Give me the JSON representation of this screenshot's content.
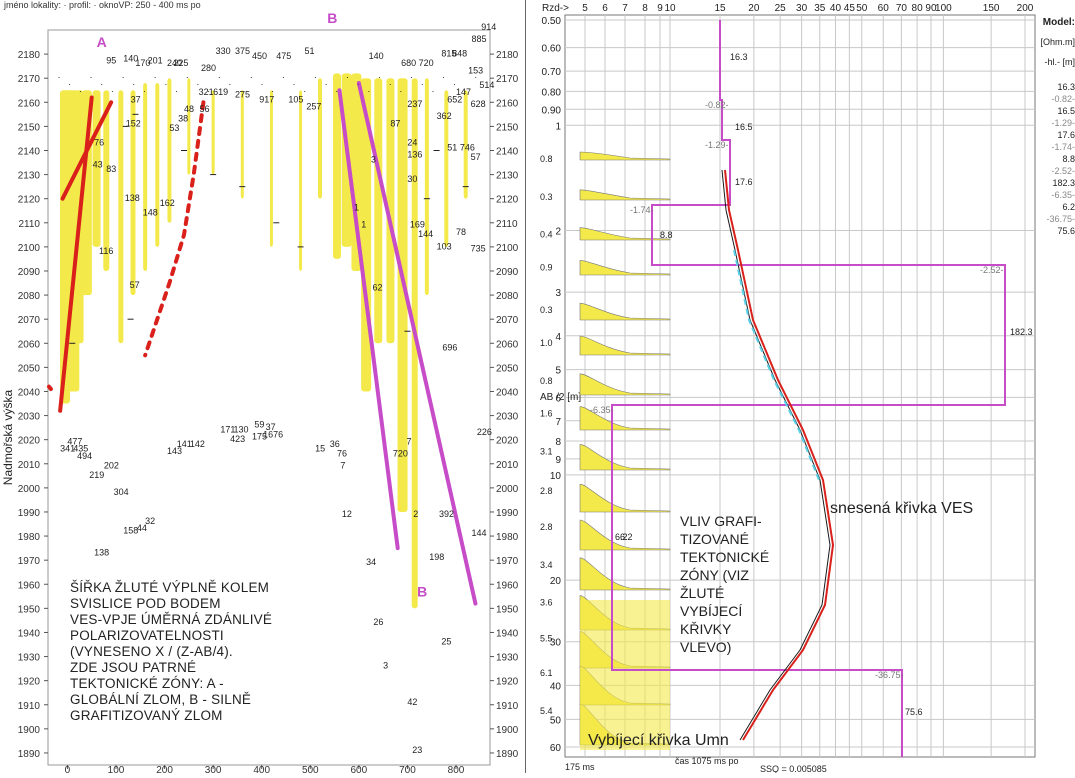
{
  "left_header": "jméno lokality:  · profil:  · oknoVP: 250 - 400 ms po",
  "left_note": "ŠÍŘKA ŽLUTÉ VÝPLNĚ KOLEM\nSVISLICE POD BODEM\nVES-VPJE ÚMĚRNÁ ZDÁNLIVÉ\nPOLARIZOVATELNOSTI\n(VYNESENO   X   / (Z-AB/4).\nZDE JSOU PATRNÉ\nTEKTONICKÉ ZÓNY: A -\nGLOBÁLNÍ ZLOM, B - SILNĚ\nGRAFITIZOVANÝ ZLOM",
  "right_note": "VLIV GRAFI-\nTIZOVANÉ\nTEKTONICKÉ\nZÓNY (VIZ\nŽLUTÉ\nVYBÍJECÍ\nKŘIVKY\nVLEVO)",
  "right_curve_label": "snesená křivka VES",
  "discharge_label": "Vybíjecí křivka Umn",
  "colors": {
    "yellow": "#f4e94a",
    "red": "#d9201a",
    "magenta": "#c64cc8",
    "black": "#1a1a1a",
    "cyan": "#5ad0e8",
    "grid": "#c8c8c8"
  },
  "chart_data": [
    {
      "type": "scatter",
      "ylabel": "Nadmořská výška",
      "xlim": [
        -40,
        870
      ],
      "ylim": [
        1885,
        2190
      ],
      "x_ticks": [
        0,
        100,
        200,
        300,
        400,
        500,
        600,
        700,
        800
      ],
      "y_ticks": [
        1890,
        1900,
        1910,
        1920,
        1930,
        1940,
        1950,
        1960,
        1970,
        1980,
        1990,
        2000,
        2010,
        2020,
        2030,
        2040,
        2050,
        2060,
        2070,
        2080,
        2090,
        2100,
        2110,
        2120,
        2130,
        2140,
        2150,
        2160,
        2170,
        2180
      ],
      "annotations": [
        {
          "text": "A",
          "x": 60,
          "y": 2183
        },
        {
          "text": "B",
          "x": 535,
          "y": 2193
        },
        {
          "text": "B",
          "x": 720,
          "y": 1955
        }
      ],
      "fault_lines": [
        {
          "name": "A",
          "color": "red",
          "points": [
            [
              -15,
              2032
            ],
            [
              50,
              2162
            ]
          ]
        },
        {
          "name": "A",
          "color": "red",
          "points": [
            [
              -10,
              2120
            ],
            [
              90,
              2160
            ]
          ]
        },
        {
          "name": "B",
          "color": "magenta",
          "points": [
            [
              560,
              2165
            ],
            [
              680,
              1975
            ]
          ]
        },
        {
          "name": "B",
          "color": "magenta",
          "points": [
            [
              600,
              2168
            ],
            [
              840,
              1952
            ]
          ]
        }
      ],
      "red_dashed_curve": [
        [
          280,
          2160
        ],
        [
          260,
          2130
        ],
        [
          240,
          2105
        ],
        [
          210,
          2085
        ],
        [
          185,
          2070
        ],
        [
          160,
          2055
        ]
      ],
      "yellow_columns": [
        {
          "x": -5,
          "top": 2165,
          "bottom": 2035,
          "w": 10
        },
        {
          "x": 8,
          "top": 2165,
          "bottom": 2040,
          "w": 16
        },
        {
          "x": 25,
          "top": 2165,
          "bottom": 2060,
          "w": 8
        },
        {
          "x": 40,
          "top": 2165,
          "bottom": 2080,
          "w": 10
        },
        {
          "x": 60,
          "top": 2165,
          "bottom": 2100,
          "w": 8
        },
        {
          "x": 80,
          "top": 2165,
          "bottom": 2090,
          "w": 6
        },
        {
          "x": 110,
          "top": 2165,
          "bottom": 2060,
          "w": 5
        },
        {
          "x": 135,
          "top": 2165,
          "bottom": 2080,
          "w": 5
        },
        {
          "x": 160,
          "top": 2168,
          "bottom": 2090,
          "w": 4
        },
        {
          "x": 185,
          "top": 2168,
          "bottom": 2100,
          "w": 4
        },
        {
          "x": 210,
          "top": 2170,
          "bottom": 2110,
          "w": 4
        },
        {
          "x": 250,
          "top": 2170,
          "bottom": 2130,
          "w": 3
        },
        {
          "x": 300,
          "top": 2165,
          "bottom": 2130,
          "w": 3
        },
        {
          "x": 360,
          "top": 2165,
          "bottom": 2120,
          "w": 3
        },
        {
          "x": 420,
          "top": 2165,
          "bottom": 2100,
          "w": 3
        },
        {
          "x": 480,
          "top": 2165,
          "bottom": 2090,
          "w": 3
        },
        {
          "x": 520,
          "top": 2170,
          "bottom": 2120,
          "w": 4
        },
        {
          "x": 555,
          "top": 2172,
          "bottom": 2095,
          "w": 8
        },
        {
          "x": 575,
          "top": 2172,
          "bottom": 2100,
          "w": 10
        },
        {
          "x": 595,
          "top": 2172,
          "bottom": 2090,
          "w": 10
        },
        {
          "x": 615,
          "top": 2170,
          "bottom": 2040,
          "w": 10
        },
        {
          "x": 640,
          "top": 2170,
          "bottom": 2060,
          "w": 8
        },
        {
          "x": 665,
          "top": 2170,
          "bottom": 2060,
          "w": 8
        },
        {
          "x": 690,
          "top": 2170,
          "bottom": 1990,
          "w": 10
        },
        {
          "x": 715,
          "top": 2170,
          "bottom": 1950,
          "w": 6
        },
        {
          "x": 740,
          "top": 2170,
          "bottom": 2080,
          "w": 4
        },
        {
          "x": 780,
          "top": 2165,
          "bottom": 2100,
          "w": 4
        },
        {
          "x": 820,
          "top": 2165,
          "bottom": 2120,
          "w": 4
        }
      ],
      "labels": [
        {
          "text": "116",
          "x": 65,
          "y": 2097
        },
        {
          "text": "57",
          "x": 128,
          "y": 2083
        },
        {
          "text": "138",
          "x": 118,
          "y": 2119
        },
        {
          "text": "148",
          "x": 155,
          "y": 2113
        },
        {
          "text": "162",
          "x": 190,
          "y": 2117
        },
        {
          "text": "152",
          "x": 120,
          "y": 2150
        },
        {
          "text": "76",
          "x": 55,
          "y": 2142
        },
        {
          "text": "53",
          "x": 210,
          "y": 2148
        },
        {
          "text": "56",
          "x": 272,
          "y": 2156
        },
        {
          "text": "330",
          "x": 305,
          "y": 2180
        },
        {
          "text": "375",
          "x": 345,
          "y": 2180
        },
        {
          "text": "280",
          "x": 275,
          "y": 2173
        },
        {
          "text": "275",
          "x": 345,
          "y": 2162
        },
        {
          "text": "917",
          "x": 395,
          "y": 2160
        },
        {
          "text": "105",
          "x": 455,
          "y": 2160
        },
        {
          "text": "257",
          "x": 492,
          "y": 2157
        },
        {
          "text": "225",
          "x": 218,
          "y": 2175
        },
        {
          "text": "1",
          "x": 590,
          "y": 2115
        },
        {
          "text": "1",
          "x": 605,
          "y": 2108
        },
        {
          "text": "3",
          "x": 625,
          "y": 2135
        },
        {
          "text": "62",
          "x": 628,
          "y": 2082
        },
        {
          "text": "87",
          "x": 665,
          "y": 2150
        },
        {
          "text": "24",
          "x": 700,
          "y": 2142
        },
        {
          "text": "136",
          "x": 700,
          "y": 2137
        },
        {
          "text": "30",
          "x": 700,
          "y": 2127
        },
        {
          "text": "169",
          "x": 705,
          "y": 2108
        },
        {
          "text": "144",
          "x": 722,
          "y": 2104
        },
        {
          "text": "103",
          "x": 760,
          "y": 2099
        },
        {
          "text": "78",
          "x": 800,
          "y": 2105
        },
        {
          "text": "735",
          "x": 830,
          "y": 2098
        },
        {
          "text": "57",
          "x": 830,
          "y": 2136
        },
        {
          "text": "746",
          "x": 808,
          "y": 2140
        },
        {
          "text": "51",
          "x": 782,
          "y": 2140
        },
        {
          "text": "362",
          "x": 760,
          "y": 2153
        },
        {
          "text": "237",
          "x": 700,
          "y": 2158
        },
        {
          "text": "628",
          "x": 830,
          "y": 2158
        },
        {
          "text": "652",
          "x": 782,
          "y": 2160
        },
        {
          "text": "147",
          "x": 800,
          "y": 2163
        },
        {
          "text": "514",
          "x": 848,
          "y": 2166
        },
        {
          "text": "153",
          "x": 825,
          "y": 2172
        },
        {
          "text": "914",
          "x": 852,
          "y": 2190
        },
        {
          "text": "885",
          "x": 832,
          "y": 2185
        },
        {
          "text": "680",
          "x": 687,
          "y": 2175
        },
        {
          "text": "720",
          "x": 723,
          "y": 2175
        },
        {
          "text": "815",
          "x": 770,
          "y": 2179
        },
        {
          "text": "848",
          "x": 792,
          "y": 2179
        },
        {
          "text": "696",
          "x": 772,
          "y": 2057
        },
        {
          "text": "226",
          "x": 843,
          "y": 2022
        },
        {
          "text": "720",
          "x": 670,
          "y": 2013
        },
        {
          "text": "7",
          "x": 698,
          "y": 2018
        },
        {
          "text": "12",
          "x": 565,
          "y": 1988
        },
        {
          "text": "2",
          "x": 712,
          "y": 1988
        },
        {
          "text": "392",
          "x": 765,
          "y": 1988
        },
        {
          "text": "144",
          "x": 832,
          "y": 1980
        },
        {
          "text": "198",
          "x": 745,
          "y": 1970
        },
        {
          "text": "34",
          "x": 615,
          "y": 1968
        },
        {
          "text": "26",
          "x": 630,
          "y": 1943
        },
        {
          "text": "25",
          "x": 770,
          "y": 1935
        },
        {
          "text": "3",
          "x": 650,
          "y": 1925
        },
        {
          "text": "42",
          "x": 700,
          "y": 1910
        },
        {
          "text": "23",
          "x": 710,
          "y": 1890
        },
        {
          "text": "36",
          "x": 540,
          "y": 2017
        },
        {
          "text": "76",
          "x": 555,
          "y": 2013
        },
        {
          "text": "7",
          "x": 562,
          "y": 2008
        },
        {
          "text": "15",
          "x": 510,
          "y": 2015
        },
        {
          "text": "59",
          "x": 385,
          "y": 2025
        },
        {
          "text": "37",
          "x": 408,
          "y": 2024
        },
        {
          "text": "171",
          "x": 315,
          "y": 2023
        },
        {
          "text": "130",
          "x": 342,
          "y": 2023
        },
        {
          "text": "423",
          "x": 335,
          "y": 2019
        },
        {
          "text": "175",
          "x": 380,
          "y": 2020
        },
        {
          "text": "1676",
          "x": 403,
          "y": 2021
        },
        {
          "text": "141",
          "x": 225,
          "y": 2017
        },
        {
          "text": "142",
          "x": 252,
          "y": 2017
        },
        {
          "text": "143",
          "x": 205,
          "y": 2014
        },
        {
          "text": "477",
          "x": 0,
          "y": 2018
        },
        {
          "text": "341",
          "x": -15,
          "y": 2015
        },
        {
          "text": "435",
          "x": 12,
          "y": 2015
        },
        {
          "text": "494",
          "x": 20,
          "y": 2012
        },
        {
          "text": "202",
          "x": 75,
          "y": 2008
        },
        {
          "text": "219",
          "x": 45,
          "y": 2004
        },
        {
          "text": "304",
          "x": 95,
          "y": 1997
        },
        {
          "text": "158",
          "x": 115,
          "y": 1981
        },
        {
          "text": "44",
          "x": 143,
          "y": 1982
        },
        {
          "text": "32",
          "x": 160,
          "y": 1985
        },
        {
          "text": "138",
          "x": 55,
          "y": 1972
        },
        {
          "text": "321",
          "x": 270,
          "y": 2163
        },
        {
          "text": "619",
          "x": 300,
          "y": 2163
        },
        {
          "text": "95",
          "x": 80,
          "y": 2176
        },
        {
          "text": "140",
          "x": 115,
          "y": 2177
        },
        {
          "text": "201",
          "x": 165,
          "y": 2176
        },
        {
          "text": "170",
          "x": 140,
          "y": 2175
        },
        {
          "text": "240",
          "x": 205,
          "y": 2175
        },
        {
          "text": "450",
          "x": 380,
          "y": 2178
        },
        {
          "text": "475",
          "x": 430,
          "y": 2178
        },
        {
          "text": "51",
          "x": 488,
          "y": 2180
        },
        {
          "text": "140",
          "x": 620,
          "y": 2178
        },
        {
          "text": "37",
          "x": 130,
          "y": 2160
        },
        {
          "text": "38",
          "x": 228,
          "y": 2152
        },
        {
          "text": "43",
          "x": 52,
          "y": 2133
        },
        {
          "text": "83",
          "x": 80,
          "y": 2131
        },
        {
          "text": "48",
          "x": 240,
          "y": 2156
        }
      ]
    },
    {
      "type": "line",
      "x_ticks": [
        "Rzd->",
        "5",
        "6",
        "7",
        "8",
        "9",
        "10",
        "15",
        "20",
        "25",
        "30",
        "35",
        "40",
        "45",
        "50",
        "60",
        "70",
        "80",
        "90",
        "100",
        "150",
        "200"
      ],
      "ylabel": "AB /2 [m]",
      "y_ticks": [
        "0.50",
        "0.60",
        "0.70",
        "0.80",
        "0.90",
        "1",
        "2",
        "3",
        "4",
        "5",
        "6",
        "7",
        "8",
        "9",
        "10",
        "20",
        "30",
        "40",
        "50",
        "60"
      ],
      "model_header": [
        "Model:",
        "[Ohm.m]",
        "-hl.- [m]"
      ],
      "model_values": [
        "16.3",
        "-0.82-",
        "16.5",
        "-1.29-",
        "17.6",
        "-1.74-",
        "8.8",
        "-2.52-",
        "182.3",
        "-6.35-",
        "6.2",
        "-36.75-",
        "75.6"
      ],
      "layers": [
        {
          "rho": 16.3,
          "label": "16.3"
        },
        {
          "rho": 16.5,
          "label": "16.5",
          "top": "-0.82-"
        },
        {
          "rho": 17.6,
          "label": "17.6",
          "top": "-1.29-"
        },
        {
          "rho": 8.8,
          "label": "8.8",
          "top": "-1.74-"
        },
        {
          "rho": 182.3,
          "label": "182.3",
          "top": "-2.52-"
        },
        {
          "rho": 6.2,
          "label": "6.2",
          "top": "-6.35-"
        },
        {
          "rho": 75.6,
          "label": "75.6",
          "top": "-36.75-"
        }
      ],
      "discharge_values": [
        "0.8",
        "0.3",
        "0.4",
        "0.9",
        "0.3",
        "1.0",
        "0.8",
        "1.6",
        "3.1",
        "2.8",
        "2.8",
        "3.4",
        "3.6",
        "5.5",
        "6.1",
        "5.4"
      ],
      "footer": [
        "175 ms",
        "čas 1075 ms po",
        "SSQ = 0.005085"
      ]
    }
  ]
}
